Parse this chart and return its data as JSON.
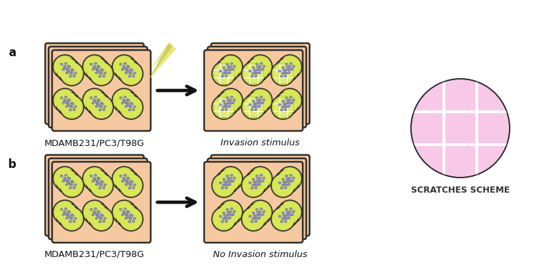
{
  "bg_color": "#ffffff",
  "plate_fill": "#f5c8a0",
  "plate_edge": "#2d2d2d",
  "well_outer_fill": "#c8d44e",
  "well_outer_edge": "#2d2d2d",
  "cell_fill": "#9898cc",
  "cell_edge": "#6868aa",
  "scratch_fill": "#f8c8e8",
  "scratch_edge": "#2d2d2d",
  "scratch_line_color": "#ffffff",
  "arrow_color": "#111111",
  "needle_color1": "#e8e880",
  "needle_color2": "#d0d058",
  "label_a": "a",
  "label_b": "b",
  "label1": "MDAMB231/PC3/T98G",
  "label2": "Invasion stimulus",
  "label3": "MDAMB231/PC3/T98G",
  "label4": "No Invasion stimulus",
  "label5": "SCRATCHES SCHEME",
  "label_fontsize": 9.5,
  "ab_fontsize": 12
}
